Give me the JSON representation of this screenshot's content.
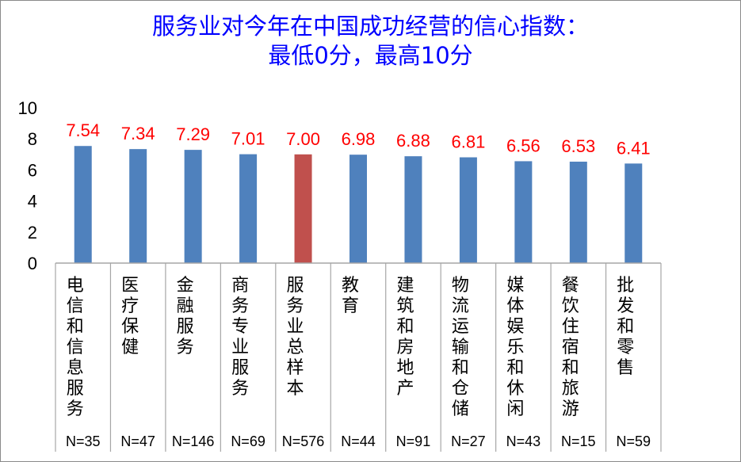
{
  "chart_data": {
    "type": "bar",
    "title": [
      "服务业对今年在中国成功经营的信心指数：",
      "最低0分，最高10分"
    ],
    "ylim": [
      0,
      10
    ],
    "yticks": [
      0,
      2,
      4,
      6,
      8,
      10
    ],
    "grid": false,
    "legend": "none",
    "categories": [
      "电信和信息服务",
      "医疗保健",
      "金融服务",
      "商务专业服务",
      "服务业总样本",
      "教育",
      "建筑和房地产",
      "物流运输和仓储",
      "媒体娱乐和休闲",
      "餐饮住宿和旅游",
      "批发和零售"
    ],
    "sample_sizes": [
      "N=35",
      "N=47",
      "N=146",
      "N=69",
      "N=576",
      "N=44",
      "N=91",
      "N=27",
      "N=43",
      "N=15",
      "N=59"
    ],
    "values": [
      7.54,
      7.34,
      7.29,
      7.01,
      7.0,
      6.98,
      6.88,
      6.81,
      6.56,
      6.53,
      6.41
    ],
    "value_labels": [
      "7.54",
      "7.34",
      "7.29",
      "7.01",
      "7.00",
      "6.98",
      "6.88",
      "6.81",
      "6.56",
      "6.53",
      "6.41"
    ],
    "highlight_index": 4,
    "colors": {
      "bar": "#4f81bd",
      "highlight": "#c0504d",
      "data_label": "#ff0000",
      "title": "#0000ff",
      "axis": "#a6a6a6"
    }
  }
}
